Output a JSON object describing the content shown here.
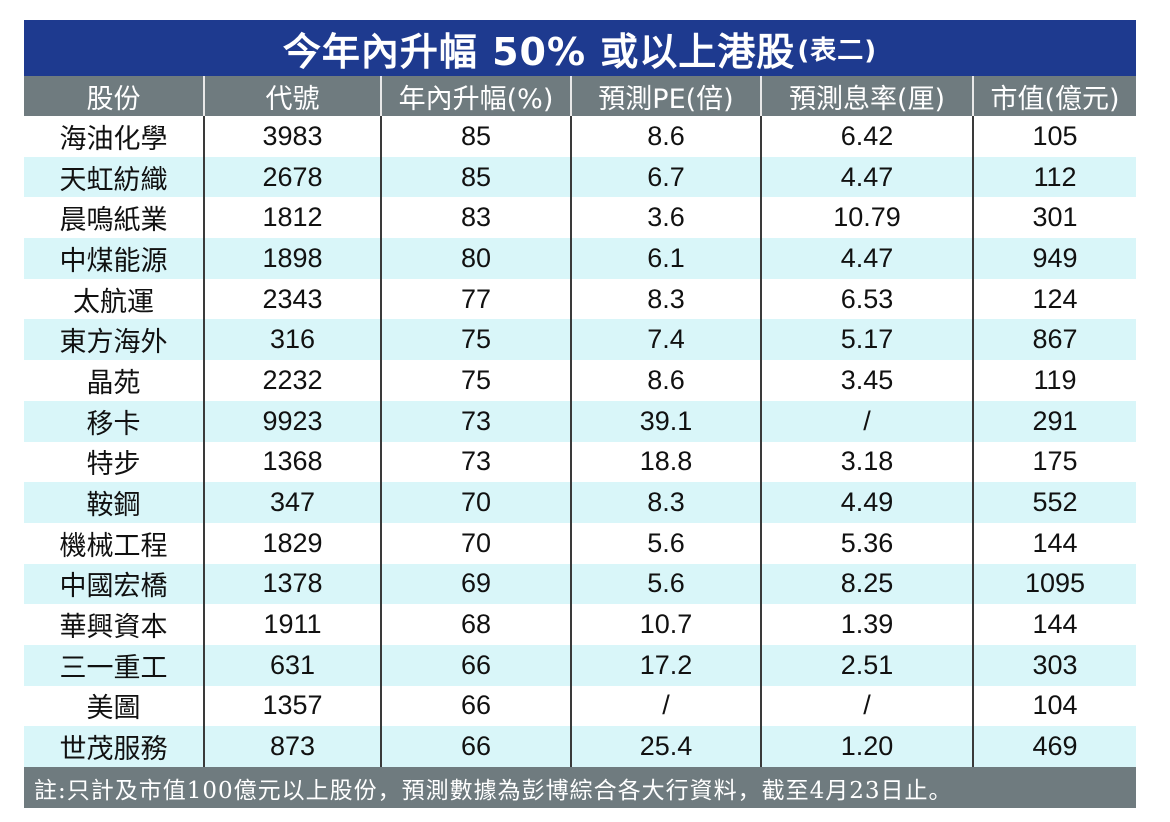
{
  "title": {
    "main": "今年內升幅 50% 或以上港股",
    "sub": "(表二)"
  },
  "columns": [
    "股份",
    "代號",
    "年內升幅(%)",
    "預測PE(倍)",
    "預測息率(厘)",
    "市值(億元)"
  ],
  "rows": [
    [
      "海油化學",
      "3983",
      "85",
      "8.6",
      "6.42",
      "105"
    ],
    [
      "天虹紡織",
      "2678",
      "85",
      "6.7",
      "4.47",
      "112"
    ],
    [
      "晨鳴紙業",
      "1812",
      "83",
      "3.6",
      "10.79",
      "301"
    ],
    [
      "中煤能源",
      "1898",
      "80",
      "6.1",
      "4.47",
      "949"
    ],
    [
      "太航運",
      "2343",
      "77",
      "8.3",
      "6.53",
      "124"
    ],
    [
      "東方海外",
      "316",
      "75",
      "7.4",
      "5.17",
      "867"
    ],
    [
      "晶苑",
      "2232",
      "75",
      "8.6",
      "3.45",
      "119"
    ],
    [
      "移卡",
      "9923",
      "73",
      "39.1",
      "/",
      "291"
    ],
    [
      "特步",
      "1368",
      "73",
      "18.8",
      "3.18",
      "175"
    ],
    [
      "鞍鋼",
      "347",
      "70",
      "8.3",
      "4.49",
      "552"
    ],
    [
      "機械工程",
      "1829",
      "70",
      "5.6",
      "5.36",
      "144"
    ],
    [
      "中國宏橋",
      "1378",
      "69",
      "5.6",
      "8.25",
      "1095"
    ],
    [
      "華興資本",
      "1911",
      "68",
      "10.7",
      "1.39",
      "144"
    ],
    [
      "三一重工",
      "631",
      "66",
      "17.2",
      "2.51",
      "303"
    ],
    [
      "美圖",
      "1357",
      "66",
      "/",
      "/",
      "104"
    ],
    [
      "世茂服務",
      "873",
      "66",
      "25.4",
      "1.20",
      "469"
    ]
  ],
  "note": "註:只計及市值100億元以上股份，預測數據為彭博綜合各大行資料，截至4月23日止。",
  "colors": {
    "title_bg": "#1e3a8f",
    "header_bg": "#6f7b7f",
    "stripe": "#d9f6f9"
  }
}
